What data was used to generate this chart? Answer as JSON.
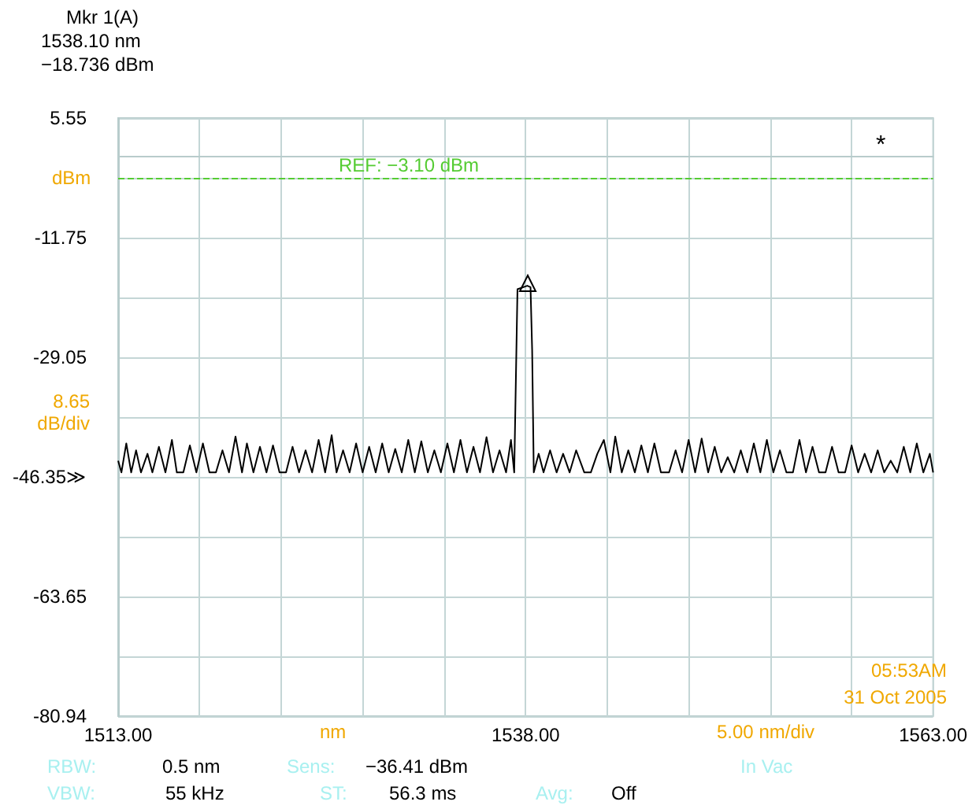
{
  "chart_data": {
    "type": "line",
    "xlabel": "nm",
    "x": [
      1513.0,
      1513.2,
      1513.5,
      1513.8,
      1514.1,
      1514.4,
      1514.8,
      1515.1,
      1515.5,
      1515.9,
      1516.3,
      1516.6,
      1517.0,
      1517.4,
      1517.8,
      1518.2,
      1518.6,
      1519.0,
      1519.4,
      1519.8,
      1520.2,
      1520.6,
      1520.9,
      1521.3,
      1521.7,
      1522.1,
      1522.5,
      1522.9,
      1523.3,
      1523.7,
      1524.1,
      1524.5,
      1524.9,
      1525.3,
      1525.7,
      1526.1,
      1526.4,
      1526.8,
      1527.2,
      1527.6,
      1528.0,
      1528.4,
      1528.8,
      1529.2,
      1529.6,
      1530.0,
      1530.4,
      1530.8,
      1531.2,
      1531.6,
      1532.0,
      1532.4,
      1532.8,
      1533.2,
      1533.6,
      1534.0,
      1534.4,
      1534.8,
      1535.2,
      1535.6,
      1536.0,
      1536.4,
      1536.8,
      1537.1,
      1537.3,
      1537.4,
      1537.5,
      1538.1,
      1538.3,
      1538.4,
      1538.5,
      1538.8,
      1539.1,
      1539.5,
      1539.9,
      1540.3,
      1540.7,
      1541.1,
      1541.6,
      1542.0,
      1542.4,
      1542.8,
      1543.2,
      1543.5,
      1543.9,
      1544.3,
      1544.7,
      1545.1,
      1545.5,
      1545.9,
      1546.3,
      1546.8,
      1547.2,
      1547.6,
      1548.0,
      1548.4,
      1548.8,
      1549.2,
      1549.6,
      1550.0,
      1550.4,
      1550.8,
      1551.2,
      1551.6,
      1552.0,
      1552.4,
      1552.8,
      1553.2,
      1553.6,
      1554.0,
      1554.4,
      1554.8,
      1555.2,
      1555.6,
      1556.0,
      1556.4,
      1556.8,
      1557.2,
      1557.6,
      1558.0,
      1558.4,
      1558.8,
      1559.2,
      1559.6,
      1560.0,
      1560.4,
      1560.8,
      1561.2,
      1561.6,
      1562.0,
      1562.4,
      1562.8,
      1563.0
    ],
    "series": [
      {
        "color": "#000000",
        "values": [
          -44.0,
          -45.7,
          -41.5,
          -45.7,
          -42.5,
          -45.7,
          -43.0,
          -45.7,
          -42.0,
          -45.7,
          -41.0,
          -45.7,
          -45.7,
          -41.8,
          -45.7,
          -41.5,
          -45.7,
          -45.7,
          -42.5,
          -45.7,
          -40.5,
          -45.7,
          -41.5,
          -45.7,
          -42.0,
          -45.7,
          -41.8,
          -45.7,
          -45.7,
          -42.0,
          -45.7,
          -42.5,
          -45.7,
          -41.0,
          -45.7,
          -40.3,
          -45.7,
          -42.5,
          -45.7,
          -41.5,
          -45.7,
          -42.0,
          -45.7,
          -41.5,
          -45.7,
          -42.3,
          -45.7,
          -41.0,
          -45.7,
          -41.2,
          -45.7,
          -42.5,
          -45.7,
          -41.5,
          -45.7,
          -41.0,
          -45.7,
          -42.0,
          -45.7,
          -40.6,
          -45.7,
          -42.5,
          -45.7,
          -41.0,
          -45.7,
          -32.5,
          -19.2,
          -18.7,
          -18.9,
          -28.0,
          -45.7,
          -43.0,
          -45.7,
          -42.5,
          -45.7,
          -43.0,
          -45.7,
          -42.5,
          -45.7,
          -45.7,
          -43.0,
          -41.0,
          -45.7,
          -40.5,
          -45.7,
          -42.5,
          -45.7,
          -41.8,
          -45.7,
          -41.5,
          -45.7,
          -45.7,
          -42.5,
          -45.7,
          -41.0,
          -45.7,
          -40.8,
          -45.7,
          -42.0,
          -45.7,
          -43.5,
          -45.7,
          -42.5,
          -45.7,
          -41.5,
          -45.7,
          -41.0,
          -45.7,
          -42.5,
          -45.7,
          -45.7,
          -41.0,
          -45.7,
          -42.0,
          -45.7,
          -45.7,
          -42.0,
          -45.7,
          -45.7,
          -41.8,
          -45.7,
          -43.0,
          -45.7,
          -42.5,
          -45.7,
          -44.0,
          -45.7,
          -42.0,
          -45.7,
          -41.5,
          -45.7,
          -43.0,
          -45.7
        ]
      }
    ],
    "xlim": [
      1513,
      1563
    ],
    "xticks": [
      {
        "value": 1513,
        "label": "1513.00"
      },
      {
        "value": 1518,
        "label": null
      },
      {
        "value": 1523,
        "label": null
      },
      {
        "value": 1528,
        "label": null
      },
      {
        "value": 1533,
        "label": null
      },
      {
        "value": 1538,
        "label": "1538.00"
      },
      {
        "value": 1543,
        "label": null
      },
      {
        "value": 1548,
        "label": null
      },
      {
        "value": 1553,
        "label": null
      },
      {
        "value": 1558,
        "label": null
      },
      {
        "value": 1563,
        "label": "1563.00"
      }
    ],
    "ylim": [
      -80.94,
      5.55
    ],
    "yticks": [
      -80.94,
      {
        "value": -72.29,
        "label": null
      },
      -63.65,
      {
        "value": -55.0,
        "label": null
      },
      {
        "value": -46.35,
        "label": "-46.35≫"
      },
      {
        "value": -37.7,
        "label": null
      },
      -29.05,
      {
        "value": -20.4,
        "label": null
      },
      -11.75,
      {
        "value": -3.1,
        "label": null
      },
      5.55
    ],
    "grid": true,
    "marker": "none",
    "line_style": "solid",
    "ref_lines": [
      {
        "axis": "y",
        "value": -3.1,
        "label": "REF: −3.10 dBm",
        "color": "#55cc33",
        "line_style": "dashed"
      }
    ],
    "annotations": [
      "Mkr 1(A)",
      "1538.10 nm",
      "−18.736 dBm",
      "dBm",
      "8.65 dB/div",
      "5.00 nm/div",
      "RBW:",
      "0.5 nm",
      "Sens:",
      "−36.41 dBm",
      "In Vac",
      "VBW:",
      "55 kHz",
      "ST:",
      "56.3 ms",
      "Avg:",
      "Off",
      "05:53AM",
      "31 Oct 2005",
      "*"
    ]
  }
}
